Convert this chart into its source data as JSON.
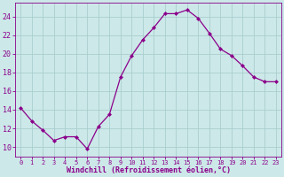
{
  "x": [
    0,
    1,
    2,
    3,
    4,
    5,
    6,
    7,
    8,
    9,
    10,
    11,
    12,
    13,
    14,
    15,
    16,
    17,
    18,
    19,
    20,
    21,
    22,
    23
  ],
  "y": [
    14.2,
    12.8,
    11.8,
    10.7,
    11.1,
    11.1,
    9.8,
    12.2,
    13.5,
    17.5,
    19.8,
    21.5,
    22.8,
    24.3,
    24.3,
    24.7,
    23.8,
    22.2,
    20.5,
    19.8,
    18.7,
    17.5,
    17.0,
    17.0
  ],
  "line_color": "#8b008b",
  "marker": "D",
  "marker_size": 2.0,
  "bg_color": "#cce8e8",
  "grid_color": "#aacece",
  "xlabel": "Windchill (Refroidissement éolien,°C)",
  "xlabel_color": "#8b008b",
  "tick_color": "#8b008b",
  "spine_color": "#8b008b",
  "ylim": [
    9,
    25.5
  ],
  "xlim": [
    -0.5,
    23.5
  ],
  "yticks": [
    10,
    12,
    14,
    16,
    18,
    20,
    22,
    24
  ],
  "xticks": [
    0,
    1,
    2,
    3,
    4,
    5,
    6,
    7,
    8,
    9,
    10,
    11,
    12,
    13,
    14,
    15,
    16,
    17,
    18,
    19,
    20,
    21,
    22,
    23
  ],
  "xlabel_fontsize": 6.0,
  "xtick_fontsize": 5.0,
  "ytick_fontsize": 6.0
}
